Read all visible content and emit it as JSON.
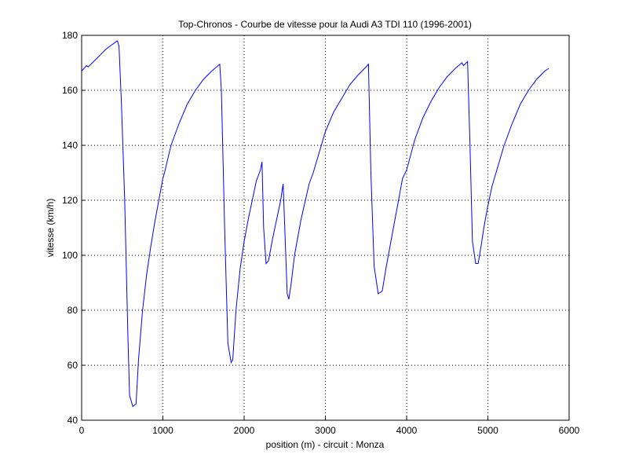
{
  "chart_data": {
    "type": "line",
    "title": "Top-Chronos - Courbe de vitesse pour la Audi A3 TDI 110 (1996-2001)",
    "x_label": "position (m) - circuit : Monza",
    "y_label": "vitesse (km/h)",
    "x": [
      0,
      60,
      80,
      200,
      300,
      440,
      460,
      490,
      530,
      570,
      590,
      630,
      670,
      700,
      750,
      800,
      850,
      900,
      950,
      1000,
      1020,
      1100,
      1200,
      1300,
      1400,
      1500,
      1600,
      1700,
      1720,
      1760,
      1800,
      1840,
      1860,
      1900,
      1950,
      2000,
      2050,
      2100,
      2150,
      2200,
      2220,
      2240,
      2270,
      2300,
      2350,
      2400,
      2450,
      2480,
      2500,
      2530,
      2550,
      2580,
      2620,
      2700,
      2800,
      2850,
      2950,
      3000,
      3100,
      3200,
      3300,
      3400,
      3500,
      3530,
      3560,
      3600,
      3650,
      3700,
      3750,
      3800,
      3900,
      3950,
      4000,
      4100,
      4200,
      4300,
      4400,
      4500,
      4600,
      4680,
      4700,
      4750,
      4780,
      4810,
      4850,
      4880,
      4920,
      4950,
      5000,
      5050,
      5100,
      5200,
      5300,
      5400,
      5500,
      5600,
      5700,
      5750
    ],
    "series": [
      {
        "name": "vitesse",
        "color": "#0000ff",
        "values": [
          167,
          169,
          168.5,
          172,
          175,
          178,
          176,
          155,
          120,
          70,
          49,
          45,
          46,
          62,
          80,
          93,
          103,
          112,
          120,
          128,
          130,
          140,
          148,
          155,
          160,
          164,
          167,
          169.5,
          160,
          110,
          68,
          61,
          62,
          80,
          95,
          105,
          113,
          120,
          127,
          131,
          134,
          110,
          97,
          98,
          106,
          113,
          120,
          126,
          110,
          86,
          84,
          90,
          100,
          113,
          126,
          130,
          140,
          145,
          152,
          157,
          162,
          165.5,
          168.5,
          169.5,
          130,
          96,
          86,
          87,
          96,
          104,
          120,
          128,
          131,
          142,
          150,
          156,
          161,
          165,
          168,
          170,
          169,
          170.5,
          140,
          105,
          97,
          97,
          104,
          110,
          118,
          125,
          130,
          140,
          148,
          155,
          160,
          164,
          167,
          168
        ]
      }
    ],
    "xlim": [
      0,
      6000
    ],
    "ylim": [
      40,
      180
    ],
    "xticks": [
      0,
      1000,
      2000,
      3000,
      4000,
      5000,
      6000
    ],
    "yticks": [
      40,
      60,
      80,
      100,
      120,
      140,
      160,
      180
    ],
    "grid": true
  }
}
